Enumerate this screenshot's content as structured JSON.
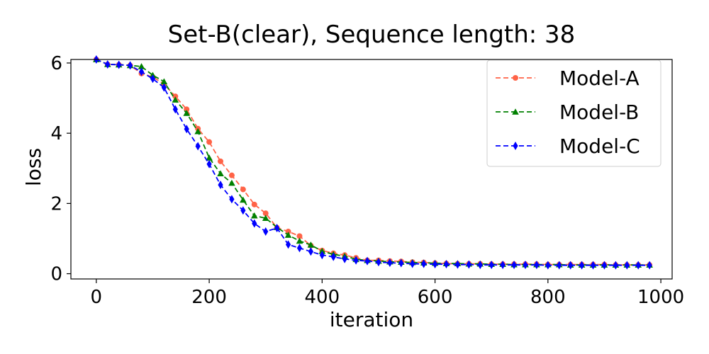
{
  "chart_data": {
    "type": "line",
    "title": "Set-B(clear), Sequence length: 38",
    "xlabel": "iteration",
    "ylabel": "loss",
    "xlim": [
      -45,
      1020
    ],
    "ylim": [
      -0.15,
      6.1
    ],
    "xticks": [
      0,
      200,
      400,
      600,
      800,
      1000
    ],
    "yticks": [
      0,
      2,
      4,
      6
    ],
    "grid": false,
    "legend_position": "top-right",
    "series": [
      {
        "name": "Model-A",
        "color": "#ff6347",
        "marker": "circle",
        "x": [
          0,
          20,
          40,
          60,
          80,
          100,
          120,
          140,
          160,
          180,
          200,
          220,
          240,
          260,
          280,
          300,
          320,
          340,
          360,
          380,
          400,
          420,
          440,
          460,
          480,
          500,
          520,
          540,
          560,
          580,
          600,
          620,
          640,
          660,
          680,
          700,
          720,
          740,
          760,
          780,
          800,
          820,
          840,
          860,
          880,
          900,
          920,
          940,
          960,
          980
        ],
        "values": [
          6.1,
          5.96,
          5.95,
          5.93,
          5.7,
          5.6,
          5.4,
          5.05,
          4.68,
          4.13,
          3.75,
          3.2,
          2.8,
          2.4,
          1.97,
          1.72,
          1.31,
          1.2,
          1.07,
          0.8,
          0.66,
          0.58,
          0.53,
          0.45,
          0.38,
          0.38,
          0.36,
          0.35,
          0.33,
          0.32,
          0.3,
          0.29,
          0.28,
          0.28,
          0.28,
          0.27,
          0.27,
          0.27,
          0.27,
          0.27,
          0.26,
          0.26,
          0.26,
          0.26,
          0.26,
          0.26,
          0.25,
          0.25,
          0.25,
          0.25
        ]
      },
      {
        "name": "Model-B",
        "color": "#008000",
        "marker": "triangle",
        "x": [
          0,
          20,
          40,
          60,
          80,
          100,
          120,
          140,
          160,
          180,
          200,
          220,
          240,
          260,
          280,
          300,
          320,
          340,
          360,
          380,
          400,
          420,
          440,
          460,
          480,
          500,
          520,
          540,
          560,
          580,
          600,
          620,
          640,
          660,
          680,
          700,
          720,
          740,
          760,
          780,
          800,
          820,
          840,
          860,
          880,
          900,
          920,
          940,
          960,
          980
        ],
        "values": [
          6.1,
          5.96,
          5.95,
          5.93,
          5.9,
          5.65,
          5.47,
          4.95,
          4.57,
          4.05,
          3.3,
          2.85,
          2.58,
          2.1,
          1.65,
          1.58,
          1.32,
          1.1,
          0.93,
          0.82,
          0.64,
          0.55,
          0.5,
          0.41,
          0.38,
          0.36,
          0.34,
          0.33,
          0.32,
          0.31,
          0.3,
          0.29,
          0.29,
          0.28,
          0.28,
          0.27,
          0.27,
          0.26,
          0.26,
          0.26,
          0.26,
          0.26,
          0.25,
          0.25,
          0.25,
          0.25,
          0.25,
          0.25,
          0.25,
          0.25
        ]
      },
      {
        "name": "Model-C",
        "color": "#0000ff",
        "marker": "diamond",
        "x": [
          0,
          20,
          40,
          60,
          80,
          100,
          120,
          140,
          160,
          180,
          200,
          220,
          240,
          260,
          280,
          300,
          320,
          340,
          360,
          380,
          400,
          420,
          440,
          460,
          480,
          500,
          520,
          540,
          560,
          580,
          600,
          620,
          640,
          660,
          680,
          700,
          720,
          740,
          760,
          780,
          800,
          820,
          840,
          860,
          880,
          900,
          920,
          940,
          960,
          980
        ],
        "values": [
          6.1,
          5.96,
          5.95,
          5.93,
          5.75,
          5.55,
          5.3,
          4.68,
          4.12,
          3.63,
          3.12,
          2.53,
          2.12,
          1.8,
          1.43,
          1.2,
          1.3,
          0.83,
          0.73,
          0.63,
          0.53,
          0.48,
          0.42,
          0.38,
          0.36,
          0.33,
          0.31,
          0.3,
          0.28,
          0.28,
          0.27,
          0.27,
          0.26,
          0.26,
          0.25,
          0.25,
          0.25,
          0.25,
          0.25,
          0.25,
          0.24,
          0.24,
          0.24,
          0.24,
          0.24,
          0.24,
          0.24,
          0.24,
          0.24,
          0.24
        ]
      }
    ]
  }
}
